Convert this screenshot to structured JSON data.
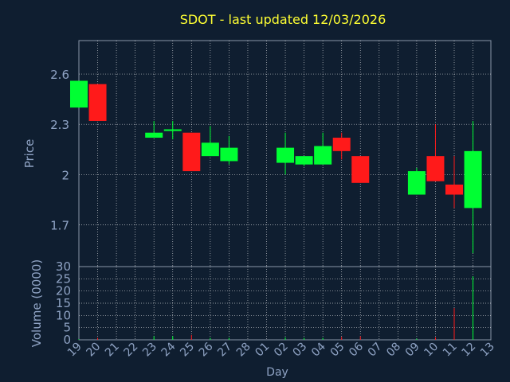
{
  "chart_data": {
    "type": "candlestick",
    "title": "SDOT - last updated 12/03/2026",
    "ylabel": "Price",
    "volume_label": "Volume (0000)",
    "xlabel": "Day",
    "price_ylim": [
      1.45,
      2.8
    ],
    "price_ticks": [
      "1.7",
      "2",
      "2.3",
      "2.6"
    ],
    "volume_ylim": [
      0,
      30
    ],
    "volume_ticks": [
      "0",
      "5",
      "10",
      "15",
      "20",
      "25",
      "30"
    ],
    "grid": true,
    "x_labels": [
      "19",
      "20",
      "21",
      "22",
      "23",
      "24",
      "25",
      "26",
      "27",
      "28",
      "01",
      "02",
      "03",
      "04",
      "05",
      "06",
      "07",
      "08",
      "09",
      "10",
      "11",
      "12",
      "13"
    ],
    "candles": [
      {
        "day": "19",
        "open": 2.4,
        "close": 2.56,
        "high": 2.56,
        "low": 2.4,
        "volume": 0.3
      },
      {
        "day": "20",
        "open": 2.54,
        "close": 2.32,
        "high": 2.54,
        "low": 2.32,
        "volume": 0.8
      },
      {
        "day": "23",
        "open": 2.22,
        "close": 2.25,
        "high": 2.32,
        "low": 2.22,
        "volume": 1.5
      },
      {
        "day": "24",
        "open": 2.26,
        "close": 2.27,
        "high": 2.32,
        "low": 2.21,
        "volume": 1.5
      },
      {
        "day": "25",
        "open": 2.25,
        "close": 2.02,
        "high": 2.25,
        "low": 2.02,
        "volume": 2.0
      },
      {
        "day": "26",
        "open": 2.11,
        "close": 2.19,
        "high": 2.29,
        "low": 2.11,
        "volume": 0.8
      },
      {
        "day": "27",
        "open": 2.08,
        "close": 2.16,
        "high": 2.23,
        "low": 2.06,
        "volume": 0.8
      },
      {
        "day": "02",
        "open": 2.07,
        "close": 2.16,
        "high": 2.25,
        "low": 2.0,
        "volume": 1.0
      },
      {
        "day": "03",
        "open": 2.06,
        "close": 2.11,
        "high": 2.11,
        "low": 2.05,
        "volume": 0.8
      },
      {
        "day": "04",
        "open": 2.06,
        "close": 2.17,
        "high": 2.25,
        "low": 2.06,
        "volume": 0.8
      },
      {
        "day": "05",
        "open": 2.22,
        "close": 2.14,
        "high": 2.25,
        "low": 2.09,
        "volume": 1.2
      },
      {
        "day": "06",
        "open": 2.11,
        "close": 1.95,
        "high": 2.11,
        "low": 1.95,
        "volume": 1.5
      },
      {
        "day": "09",
        "open": 1.88,
        "close": 2.02,
        "high": 2.04,
        "low": 1.88,
        "volume": 0.5
      },
      {
        "day": "10",
        "open": 2.11,
        "close": 1.96,
        "high": 2.3,
        "low": 1.96,
        "volume": 1.0
      },
      {
        "day": "11",
        "open": 1.94,
        "close": 1.88,
        "high": 2.11,
        "low": 1.8,
        "volume": 13.0
      },
      {
        "day": "12",
        "open": 1.8,
        "close": 2.14,
        "high": 2.32,
        "low": 1.53,
        "volume": 26.0
      }
    ],
    "colors": {
      "up": "#00ff33",
      "down": "#ff1a1a",
      "background": "#0f1e30",
      "grid": "#ffffff",
      "axis_text": "#8fa3c4",
      "title": "#ffff33"
    }
  }
}
